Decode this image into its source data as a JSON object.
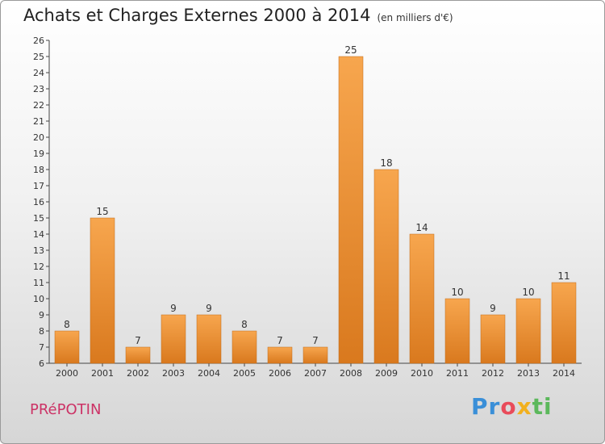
{
  "title": "Achats et Charges Externes 2000 à 2014",
  "unit": "(en milliers d'€)",
  "commune": "PRéPOTIN",
  "logo": {
    "p": "P",
    "r": "r",
    "o": "o",
    "x": "x",
    "i": "i",
    "t": "ti"
  },
  "colors": {
    "bar_top": "#f7a64e",
    "bar_bottom": "#d9791e",
    "commune": "#cc3366"
  },
  "chart_data": {
    "type": "bar",
    "title": "Achats et Charges Externes 2000 à 2014",
    "xlabel": "",
    "ylabel": "",
    "categories": [
      "2000",
      "2001",
      "2002",
      "2003",
      "2004",
      "2005",
      "2006",
      "2007",
      "2008",
      "2009",
      "2010",
      "2011",
      "2012",
      "2013",
      "2014"
    ],
    "values": [
      8,
      15,
      7,
      9,
      9,
      8,
      7,
      7,
      25,
      18,
      14,
      10,
      9,
      10,
      11
    ],
    "ylim": [
      6,
      26
    ],
    "yticks": [
      6,
      7,
      8,
      9,
      10,
      11,
      12,
      13,
      14,
      15,
      16,
      17,
      18,
      19,
      20,
      21,
      22,
      23,
      24,
      25,
      26
    ],
    "grid": false,
    "data_labels": true
  }
}
